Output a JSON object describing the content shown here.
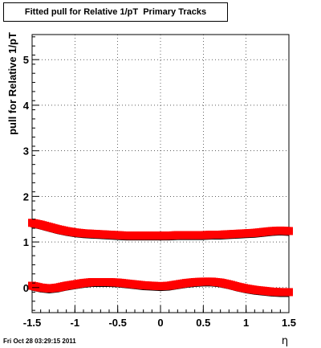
{
  "chart_data": {
    "type": "scatter",
    "title": "Fitted pull for Relative 1/pT  Primary Tracks",
    "xlabel": "η",
    "ylabel": "pull for Relative 1/pT",
    "xlim": [
      -1.5,
      1.5
    ],
    "ylim": [
      -0.55,
      5.55
    ],
    "xticks": [
      "-1.5",
      "-1",
      "-0.5",
      "0",
      "0.5",
      "1",
      "1.5"
    ],
    "yticks": [
      "0",
      "1",
      "2",
      "3",
      "4",
      "5"
    ],
    "grid": true,
    "series": [
      {
        "color": "#ff0000",
        "x": [
          -1.5,
          -1.4,
          -1.3,
          -1.2,
          -1.1,
          -1.0,
          -0.9,
          -0.8,
          -0.7,
          -0.6,
          -0.5,
          -0.4,
          -0.3,
          -0.2,
          -0.1,
          0.0,
          0.1,
          0.2,
          0.3,
          0.4,
          0.5,
          0.6,
          0.7,
          0.8,
          0.9,
          1.0,
          1.1,
          1.2,
          1.3,
          1.4,
          1.5
        ],
        "y": [
          1.42,
          1.38,
          1.33,
          1.28,
          1.24,
          1.21,
          1.19,
          1.18,
          1.17,
          1.16,
          1.15,
          1.14,
          1.14,
          1.14,
          1.14,
          1.14,
          1.14,
          1.15,
          1.15,
          1.15,
          1.15,
          1.16,
          1.16,
          1.17,
          1.18,
          1.19,
          1.2,
          1.22,
          1.24,
          1.25,
          1.24
        ]
      },
      {
        "color": "#ff0000",
        "x": [
          -1.5,
          -1.4,
          -1.3,
          -1.2,
          -1.1,
          -1.0,
          -0.9,
          -0.8,
          -0.7,
          -0.6,
          -0.5,
          -0.4,
          -0.3,
          -0.2,
          -0.1,
          0.0,
          0.1,
          0.2,
          0.3,
          0.4,
          0.5,
          0.6,
          0.7,
          0.8,
          0.9,
          1.0,
          1.1,
          1.2,
          1.3,
          1.4,
          1.5
        ],
        "y": [
          0.04,
          0.0,
          -0.02,
          0.0,
          0.04,
          0.07,
          0.1,
          0.12,
          0.12,
          0.12,
          0.11,
          0.09,
          0.07,
          0.05,
          0.04,
          0.03,
          0.04,
          0.07,
          0.1,
          0.12,
          0.13,
          0.13,
          0.11,
          0.07,
          0.02,
          -0.02,
          -0.05,
          -0.07,
          -0.09,
          -0.1,
          -0.1
        ]
      }
    ]
  },
  "footer": "Fri Oct 28 03:29:15 2011"
}
